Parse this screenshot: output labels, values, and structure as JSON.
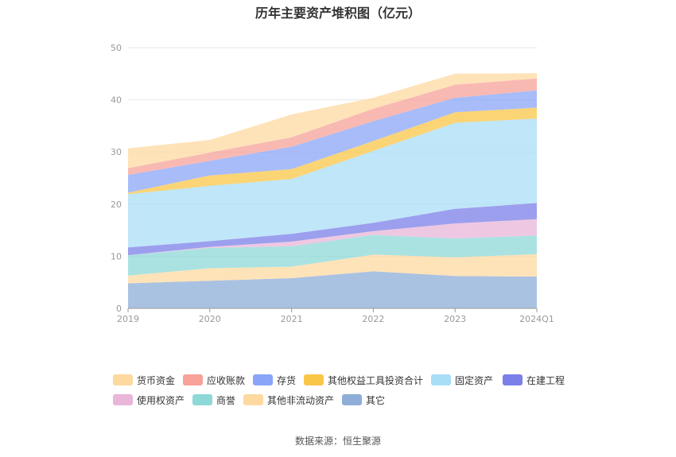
{
  "chart_data": {
    "type": "area",
    "stacked": true,
    "title": "历年主要资产堆积图（亿元）",
    "categories": [
      "2019",
      "2020",
      "2021",
      "2022",
      "2023",
      "2024Q1"
    ],
    "ylim": [
      0,
      50
    ],
    "yticks": [
      "0",
      "10",
      "20",
      "30",
      "40",
      "50"
    ],
    "grid": true,
    "legend_position": "bottom",
    "series": [
      {
        "name": "其它",
        "color": "#8eaed8",
        "values": [
          4.8,
          5.3,
          5.8,
          7.1,
          6.2,
          6.1
        ]
      },
      {
        "name": "其他非流动资产",
        "color": "#fdd9a0",
        "values": [
          1.5,
          2.4,
          2.2,
          3.2,
          3.6,
          4.3
        ]
      },
      {
        "name": "商誉",
        "color": "#8ed8d8",
        "values": [
          3.9,
          3.9,
          3.9,
          3.8,
          3.6,
          3.6
        ]
      },
      {
        "name": "使用权资产",
        "color": "#e8b6d8",
        "values": [
          0.0,
          0.2,
          0.9,
          0.7,
          2.9,
          3.1
        ]
      },
      {
        "name": "在建工程",
        "color": "#7b7fe8",
        "values": [
          1.5,
          1.1,
          1.5,
          1.6,
          2.8,
          3.1
        ]
      },
      {
        "name": "固定资产",
        "color": "#a9def7",
        "values": [
          10.2,
          10.6,
          10.5,
          13.8,
          16.5,
          16.2
        ]
      },
      {
        "name": "其他权益工具投资合计",
        "color": "#f9c648",
        "values": [
          0.3,
          2.0,
          1.9,
          1.9,
          2.0,
          2.1
        ]
      },
      {
        "name": "存货",
        "color": "#8aa5f7",
        "values": [
          3.4,
          2.8,
          4.3,
          3.8,
          2.8,
          3.3
        ]
      },
      {
        "name": "应收账款",
        "color": "#f7a199",
        "values": [
          1.3,
          1.6,
          1.8,
          2.4,
          2.5,
          2.3
        ]
      },
      {
        "name": "货币资金",
        "color": "#fdd9a0",
        "values": [
          3.8,
          2.4,
          4.4,
          2.1,
          2.1,
          1.0
        ]
      }
    ]
  },
  "legend": [
    {
      "name": "货币资金",
      "color": "#fdd9a0"
    },
    {
      "name": "应收账款",
      "color": "#f7a199"
    },
    {
      "name": "存货",
      "color": "#8aa5f7"
    },
    {
      "name": "其他权益工具投资合计",
      "color": "#f9c648"
    },
    {
      "name": "固定资产",
      "color": "#a9def7"
    },
    {
      "name": "在建工程",
      "color": "#7b7fe8"
    },
    {
      "name": "使用权资产",
      "color": "#e8b6d8"
    },
    {
      "name": "商誉",
      "color": "#8ed8d8"
    },
    {
      "name": "其他非流动资产",
      "color": "#fdd9a0"
    },
    {
      "name": "其它",
      "color": "#8eaed8"
    }
  ],
  "source": "数据来源：恒生聚源"
}
